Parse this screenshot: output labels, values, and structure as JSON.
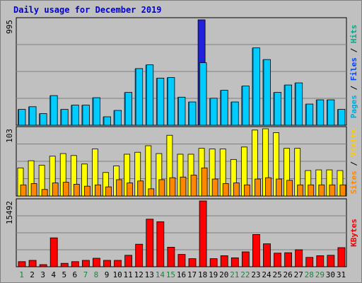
{
  "chart_data": {
    "type": "bar",
    "title": "Daily usage for December 2019",
    "days": [
      "1",
      "2",
      "3",
      "4",
      "5",
      "6",
      "7",
      "8",
      "9",
      "10",
      "11",
      "12",
      "13",
      "14",
      "15",
      "16",
      "17",
      "18",
      "19",
      "20",
      "21",
      "22",
      "23",
      "24",
      "25",
      "26",
      "27",
      "28",
      "29",
      "30",
      "31"
    ],
    "weekend_days": [
      "1",
      "7",
      "8",
      "14",
      "15",
      "21",
      "22",
      "28",
      "29"
    ],
    "colors": {
      "hits": "#00ccff",
      "files": "#0044ff",
      "pages": "#00aadd",
      "visits": "#ffff00",
      "sites": "#ff8800",
      "kbytes": "#ff0000",
      "weekend": "#208040"
    },
    "panels": [
      {
        "name": "Pages / Files / Hits",
        "ymax_label": "995",
        "ymax": 995,
        "legend": [
          {
            "text": "Pages",
            "color": "#00aadd"
          },
          {
            "text": " / ",
            "color": "#000000"
          },
          {
            "text": "Files",
            "color": "#0044ff"
          },
          {
            "text": " / ",
            "color": "#000000"
          },
          {
            "text": "Hits",
            "color": "#00aa88"
          }
        ],
        "series": [
          {
            "name": "Hits",
            "values": [
              150,
              175,
              110,
              280,
              150,
              190,
              190,
              260,
              80,
              140,
              310,
              535,
              570,
              445,
              450,
              265,
              220,
              590,
              255,
              330,
              220,
              370,
              730,
              620,
              310,
              380,
              400,
              200,
              240,
              240,
              150
            ]
          },
          {
            "name": "Files",
            "values": [
              150,
              175,
              110,
              280,
              150,
              190,
              190,
              260,
              80,
              140,
              310,
              535,
              570,
              445,
              450,
              265,
              220,
              995,
              255,
              330,
              220,
              370,
              730,
              620,
              310,
              380,
              400,
              200,
              240,
              240,
              150
            ]
          }
        ]
      },
      {
        "name": "Sites / Visits",
        "ymax_label": "103",
        "ymax": 103,
        "legend": [
          {
            "text": "Sites",
            "color": "#ff8800"
          },
          {
            "text": " / ",
            "color": "#000000"
          },
          {
            "text": "Visits",
            "color": "#ffcc00"
          }
        ],
        "series": [
          {
            "name": "Visits",
            "values": [
              43,
              54,
              47,
              61,
              65,
              62,
              49,
              72,
              36,
              46,
              64,
              67,
              77,
              65,
              93,
              64,
              64,
              73,
              72,
              72,
              56,
              75,
              101,
              103,
              97,
              73,
              73,
              39,
              40,
              40,
              39
            ]
          },
          {
            "name": "Sites",
            "values": [
              17,
              19,
              10,
              20,
              21,
              18,
              15,
              17,
              14,
              25,
              20,
              23,
              11,
              25,
              28,
              29,
              32,
              43,
              26,
              19,
              20,
              17,
              26,
              28,
              26,
              24,
              17,
              17,
              17,
              17,
              17
            ]
          }
        ]
      },
      {
        "name": "KBytes",
        "ymax_label": "15492",
        "ymax": 15492,
        "legend": [
          {
            "text": "KBytes",
            "color": "#ee0000"
          }
        ],
        "series": [
          {
            "name": "KBytes",
            "values": [
              1200,
              1500,
              500,
              6800,
              800,
              1200,
              1500,
              2000,
              1500,
              1500,
              2700,
              5300,
              11200,
              10600,
              4600,
              2900,
              1900,
              15492,
              1900,
              2600,
              2100,
              3500,
              7600,
              5400,
              3200,
              3300,
              4000,
              2200,
              2600,
              2700,
              4500
            ]
          }
        ]
      }
    ]
  }
}
